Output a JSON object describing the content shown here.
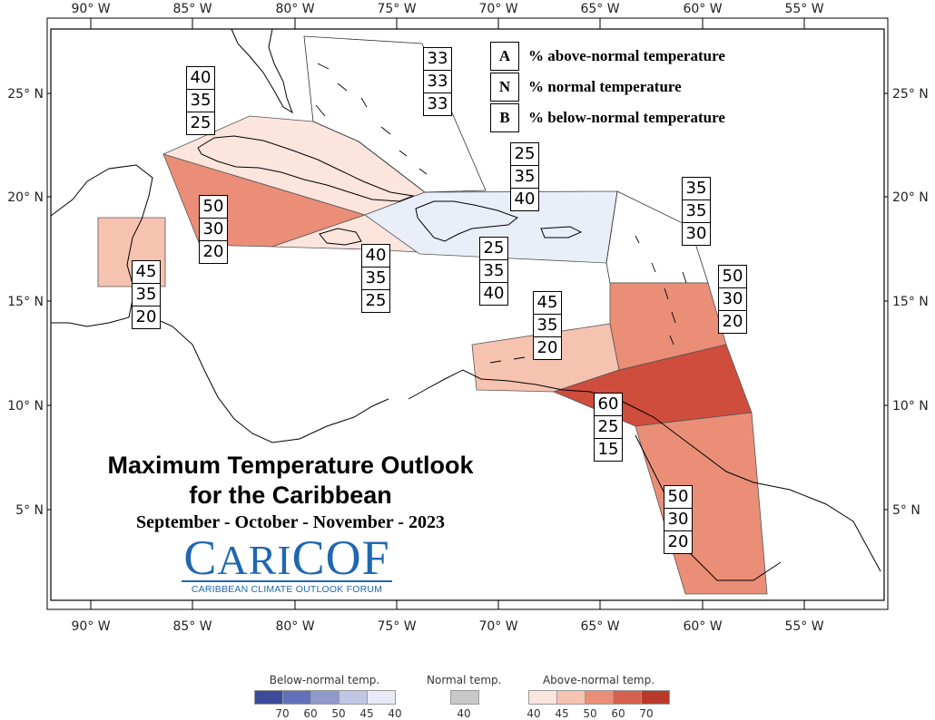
{
  "axes": {
    "longitude_ticks": [
      "90° W",
      "85° W",
      "80° W",
      "75° W",
      "70° W",
      "65° W",
      "60° W",
      "55° W"
    ],
    "latitude_ticks": [
      "25° N",
      "20° N",
      "15° N",
      "10° N",
      "5° N"
    ]
  },
  "key": {
    "items": [
      {
        "letter": "A",
        "text": "% above-normal temperature"
      },
      {
        "letter": "N",
        "text": "% normal temperature"
      },
      {
        "letter": "B",
        "text": "% below-normal temperature"
      }
    ]
  },
  "title": {
    "line1": "Maximum Temperature Outlook",
    "line2": "for the Caribbean",
    "season": "September - October - November - 2023"
  },
  "logo": {
    "name": "CariCOF",
    "subtitle": "CARIBBEAN CLIMATE OUTLOOK FORUM"
  },
  "regions": [
    {
      "name": "northern-cuba-region",
      "above": "40",
      "normal": "35",
      "below": "25",
      "color": "#fbe5dc"
    },
    {
      "name": "bahamas-region",
      "above": "33",
      "normal": "33",
      "below": "33",
      "color": "#ffffff"
    },
    {
      "name": "hispaniola-region",
      "above": "25",
      "normal": "35",
      "below": "40",
      "color": "#e9eef9"
    },
    {
      "name": "hispaniola-south-region",
      "above": "25",
      "normal": "35",
      "below": "40",
      "color": "#e9eef9"
    },
    {
      "name": "cayman-region",
      "above": "50",
      "normal": "30",
      "below": "20",
      "color": "#ea8e78"
    },
    {
      "name": "jamaica-region",
      "above": "40",
      "normal": "35",
      "below": "25",
      "color": "#fbe5dc"
    },
    {
      "name": "belize-region",
      "above": "45",
      "normal": "35",
      "below": "20",
      "color": "#f6c3b1"
    },
    {
      "name": "abc-islands-region",
      "above": "45",
      "normal": "35",
      "below": "20",
      "color": "#f6c3b1"
    },
    {
      "name": "virgin-islands-region",
      "above": "35",
      "normal": "35",
      "below": "30",
      "color": "#ffffff"
    },
    {
      "name": "lesser-antilles-region",
      "above": "50",
      "normal": "30",
      "below": "20",
      "color": "#ea8e78"
    },
    {
      "name": "trinidad-region",
      "above": "60",
      "normal": "25",
      "below": "15",
      "color": "#cf4d3c"
    },
    {
      "name": "guianas-region",
      "above": "50",
      "normal": "30",
      "below": "20",
      "color": "#ea8e78"
    }
  ],
  "legend": {
    "below": {
      "title": "Below-normal temp.",
      "ticks": [
        "70",
        "60",
        "50",
        "45",
        "40"
      ],
      "colors": [
        "#3b4b9a",
        "#6170b8",
        "#9099cc",
        "#c2c7e6",
        "#e8ebf7"
      ]
    },
    "normal": {
      "title": "Normal temp.",
      "ticks": [
        "40"
      ],
      "colors": [
        "#c8c8c8"
      ]
    },
    "above": {
      "title": "Above-normal temp.",
      "ticks": [
        "40",
        "45",
        "50",
        "60",
        "70"
      ],
      "colors": [
        "#fbe5dc",
        "#f6c3b1",
        "#ea8e78",
        "#d5604d",
        "#b8392a"
      ]
    }
  }
}
